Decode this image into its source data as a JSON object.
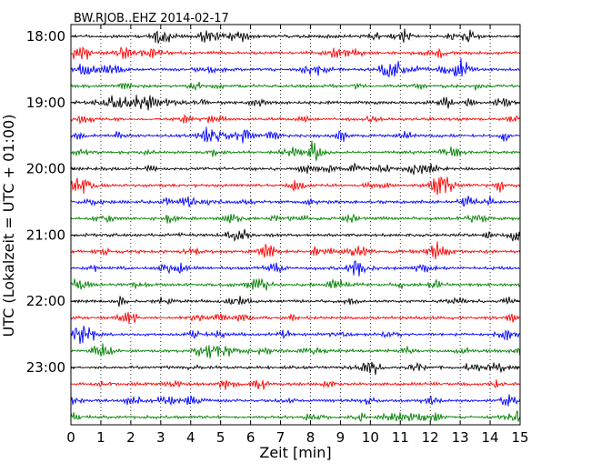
{
  "chart_data": {
    "type": "line",
    "title": "BW.RJOB..EHZ 2014-02-17",
    "xlabel": "Zeit  [min]",
    "ylabel": "UTC (Lokalzeit = UTC + 01:00)",
    "xlim": [
      0,
      15
    ],
    "xticks": [
      "0",
      "1",
      "2",
      "3",
      "4",
      "5",
      "6",
      "7",
      "8",
      "9",
      "10",
      "11",
      "12",
      "13",
      "14",
      "15"
    ],
    "yticks": [
      "18:00",
      "19:00",
      "20:00",
      "21:00",
      "22:00",
      "23:00"
    ],
    "grid": "vertical dotted",
    "trace_colors": [
      "#000000",
      "#ff0000",
      "#0000ff",
      "#008000"
    ],
    "traces_per_hour": 4,
    "trace_start_times": [
      "18:00",
      "18:15",
      "18:30",
      "18:45",
      "19:00",
      "19:15",
      "19:30",
      "19:45",
      "20:00",
      "20:15",
      "20:30",
      "20:45",
      "21:00",
      "21:15",
      "21:30",
      "21:45",
      "22:00",
      "22:15",
      "22:30",
      "22:45",
      "23:00",
      "23:15",
      "23:30",
      "23:45"
    ]
  }
}
